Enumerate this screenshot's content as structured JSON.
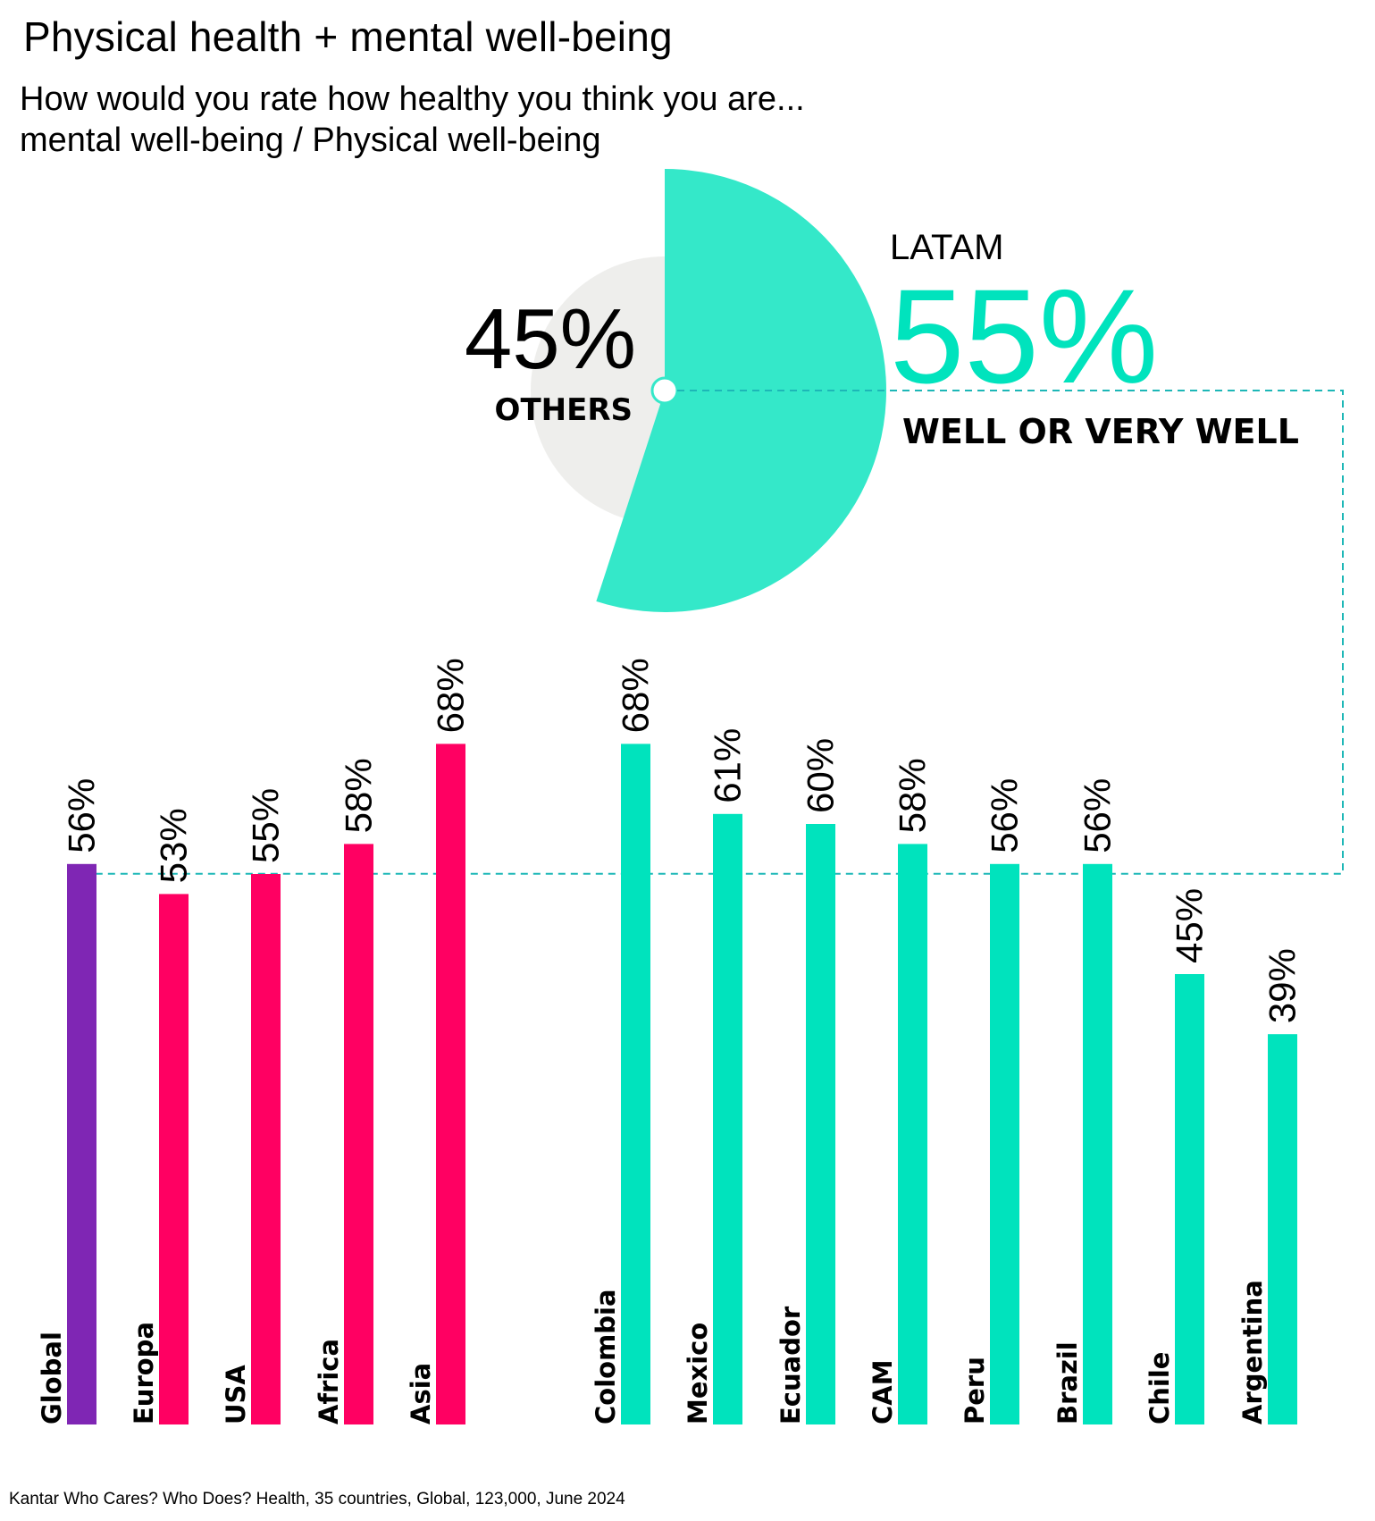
{
  "header": {
    "title": "Physical health + mental well-being",
    "subtitle_line1": "How would you rate how healthy you think you are...",
    "subtitle_line2": "mental well-being / Physical well-being"
  },
  "footer": {
    "source": "Kantar Who Cares? Who Does? Health, 35 countries, Global, 123,000, June 2024"
  },
  "colors": {
    "global": "#7f26b4",
    "regions": "#ff0062",
    "latam": "#00e3bd",
    "pie_latam": "#34e8c9",
    "pie_others": "#eeeeec",
    "dashed_line": "#1db7b7"
  },
  "chart_data": [
    {
      "type": "pie",
      "title": "LATAM",
      "slices": [
        {
          "name": "WELL OR VERY WELL",
          "value": 55,
          "label": "55%"
        },
        {
          "name": "OTHERS",
          "value": 45,
          "label": "45%"
        }
      ],
      "region_label": "LATAM"
    },
    {
      "type": "bar",
      "title": "",
      "xlabel": "",
      "ylabel": "",
      "ylim": [
        0,
        70
      ],
      "grid": false,
      "categories": [
        "Global",
        "Europa",
        "USA",
        "Africa",
        "Asia",
        "Colombia",
        "Mexico",
        "Ecuador",
        "CAM",
        "Peru",
        "Brazil",
        "Chile",
        "Argentina"
      ],
      "values": [
        56,
        53,
        55,
        58,
        68,
        68,
        61,
        60,
        58,
        56,
        56,
        45,
        39
      ],
      "labels": [
        "56%",
        "53%",
        "55%",
        "58%",
        "68%",
        "68%",
        "61%",
        "60%",
        "58%",
        "56%",
        "56%",
        "45%",
        "39%"
      ],
      "groups": [
        "global",
        "regions",
        "regions",
        "regions",
        "regions",
        "latam",
        "latam",
        "latam",
        "latam",
        "latam",
        "latam",
        "latam",
        "latam"
      ],
      "reference_line": {
        "value": 56,
        "label": "Global"
      }
    }
  ]
}
